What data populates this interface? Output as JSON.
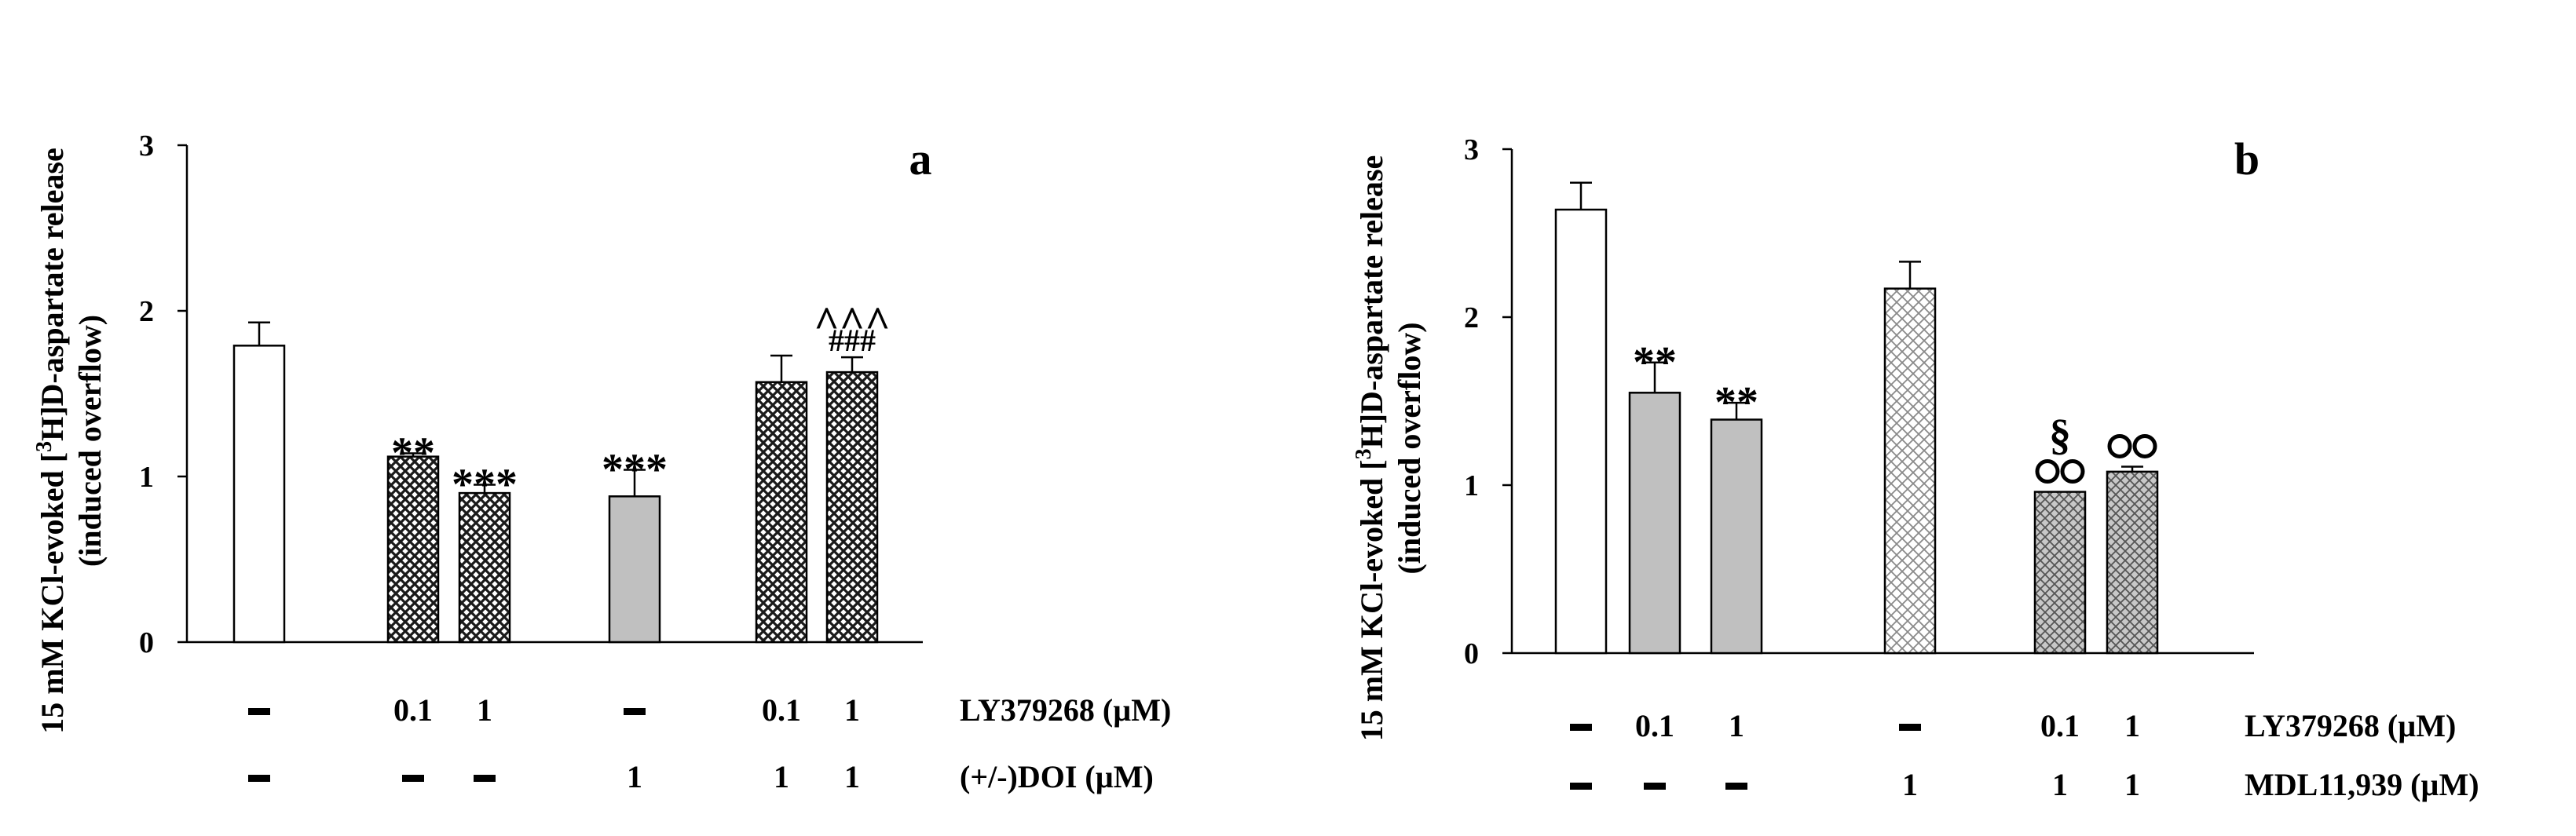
{
  "colors": {
    "open": "#ffffff",
    "gray": "#c0c0c0",
    "dark_hatch": "#1a1a1a",
    "light_hatch": "#8a8a8a",
    "mid_hatch": "#555555"
  },
  "chart_data": [
    {
      "type": "bar",
      "panel_label": "a",
      "ylabel_line1": "15 mM KCl-evoked [3H]D-aspartate release",
      "ylabel_line2": "(induced overflow)",
      "ylim": [
        0,
        3
      ],
      "yticks": [
        "0",
        "1",
        "2",
        "3"
      ],
      "grid": false,
      "bars": [
        {
          "value": 1.79,
          "error": 0.14,
          "fill": "open",
          "sig": ""
        },
        {
          "value": 1.12,
          "error": 0.02,
          "fill": "dark_hatch",
          "sig": "**"
        },
        {
          "value": 0.9,
          "error": 0.05,
          "fill": "dark_hatch",
          "sig": "***"
        },
        {
          "value": 0.88,
          "error": 0.16,
          "fill": "gray",
          "sig": "***"
        },
        {
          "value": 1.57,
          "error": 0.16,
          "fill": "dark_hatch",
          "sig": ""
        },
        {
          "value": 1.63,
          "error": 0.09,
          "fill": "dark_hatch",
          "sig": "###",
          "sig2": "^^^"
        }
      ],
      "condition_rows": [
        {
          "label": "LY379268 (µM)",
          "values": [
            "▬",
            "0.1",
            "1",
            "▬",
            "0.1",
            "1"
          ]
        },
        {
          "label": "(+/-)DOI (µM)",
          "values": [
            "▬",
            "▬",
            "▬",
            "1",
            "1",
            "1"
          ]
        }
      ]
    },
    {
      "type": "bar",
      "panel_label": "b",
      "ylabel_line1": "15 mM KCl-evoked [3H]D-aspartate release",
      "ylabel_line2": "(induced overflow)",
      "ylim": [
        0,
        3
      ],
      "yticks": [
        "0",
        "1",
        "2",
        "3"
      ],
      "grid": false,
      "bars": [
        {
          "value": 2.64,
          "error": 0.16,
          "fill": "open",
          "sig": ""
        },
        {
          "value": 1.55,
          "error": 0.18,
          "fill": "gray",
          "sig": "**"
        },
        {
          "value": 1.39,
          "error": 0.1,
          "fill": "gray",
          "sig": "**"
        },
        {
          "value": 2.17,
          "error": 0.16,
          "fill": "light_hatch",
          "sig": ""
        },
        {
          "value": 0.96,
          "error": 0.0,
          "fill": "mid_hatch",
          "sig": "OO",
          "sig2": "§"
        },
        {
          "value": 1.08,
          "error": 0.03,
          "fill": "mid_hatch",
          "sig": "OO"
        }
      ],
      "condition_rows": [
        {
          "label": "LY379268 (µM)",
          "values": [
            "▬",
            "0.1",
            "1",
            "▬",
            "0.1",
            "1"
          ]
        },
        {
          "label": "MDL11,939 (µM)",
          "values": [
            "▬",
            "▬",
            "▬",
            "1",
            "1",
            "1"
          ]
        }
      ]
    }
  ]
}
